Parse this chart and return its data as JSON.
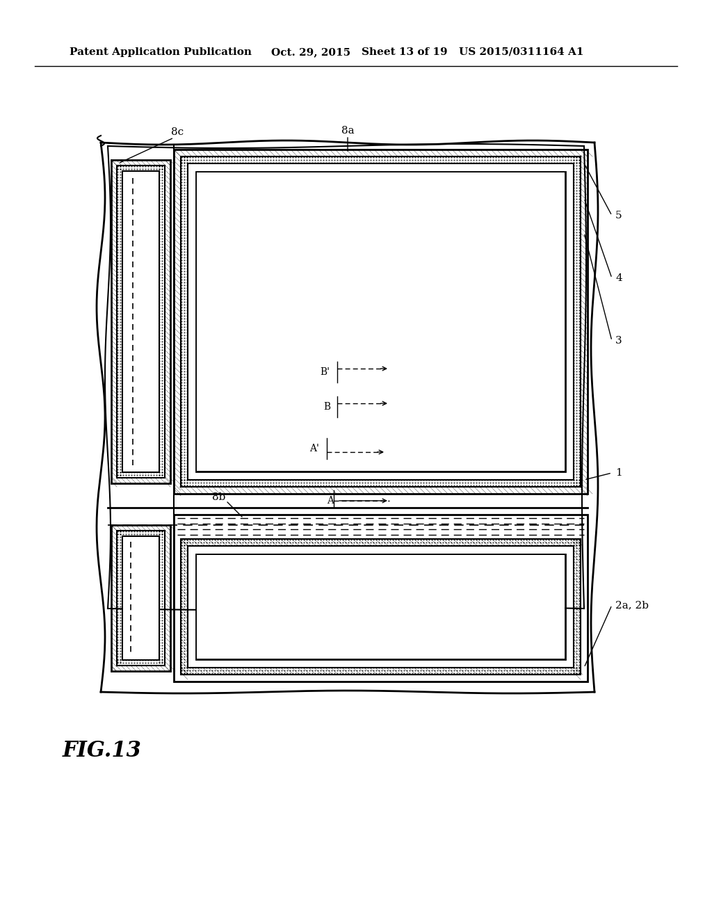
{
  "bg_color": "#ffffff",
  "header_text1": "Patent Application Publication",
  "header_text2": "Oct. 29, 2015",
  "header_text3": "Sheet 13 of 19",
  "header_text4": "US 2015/0311164 A1",
  "fig_label": "FIG.13",
  "label_1": "1",
  "label_2a2b": "2a, 2b",
  "label_3": "3",
  "label_4": "4",
  "label_5": "5",
  "label_8a": "8a",
  "label_8b": "8b",
  "label_8c": "8c",
  "label_A": "A",
  "label_Aprime": "A'",
  "label_B": "B",
  "label_Bprime": "B'"
}
